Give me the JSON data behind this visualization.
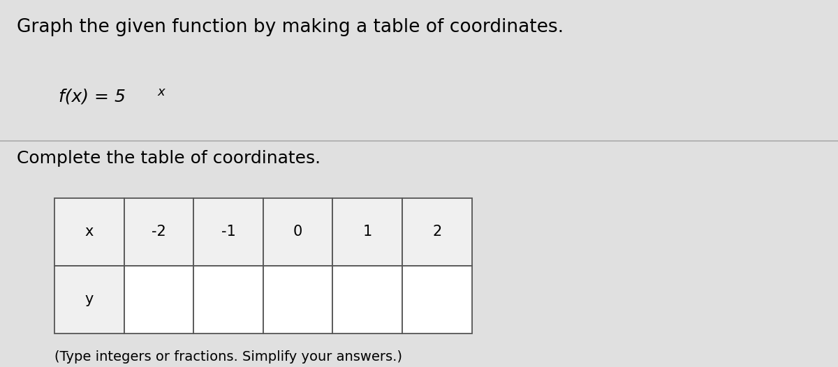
{
  "title_line1": "Graph the given function by making a table of coordinates.",
  "function_label": "f(x) = 5",
  "function_exponent": "x",
  "subtitle": "Complete the table of coordinates.",
  "footnote": "(Type integers or fractions. Simplify your answers.)",
  "x_values": [
    "-2",
    "-1",
    "0",
    "1",
    "2"
  ],
  "row_labels": [
    "x",
    "y"
  ],
  "bg_color": "#e0e0e0",
  "header_bg": "#f0f0f0",
  "cell_bg": "#ffffff",
  "border_color": "#555555",
  "title_fontsize": 19,
  "func_fontsize": 18,
  "table_fontsize": 15,
  "footnote_fontsize": 14,
  "sep_line_color": "#aaaaaa",
  "sep_line_lw": 1.2
}
